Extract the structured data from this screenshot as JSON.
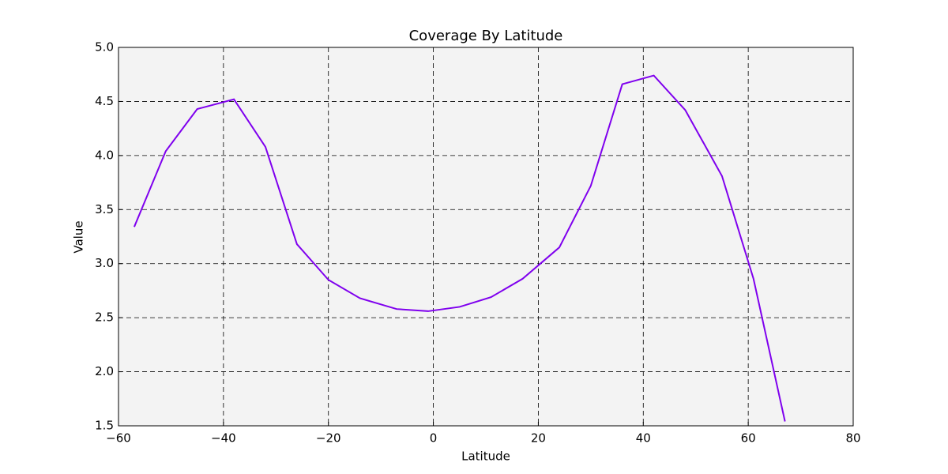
{
  "chart_data": {
    "type": "line",
    "title": "Coverage By Latitude",
    "x_label": "Latitude",
    "y_label": "Value",
    "x": [
      -57,
      -51,
      -45,
      -38,
      -32,
      -26,
      -20,
      -14,
      -7,
      -1,
      5,
      11,
      17,
      24,
      30,
      36,
      42,
      48,
      55,
      61,
      67
    ],
    "series": [
      {
        "name": "Value",
        "color": "#7f00ee",
        "values": [
          3.34,
          4.04,
          4.43,
          4.52,
          4.08,
          3.18,
          2.85,
          2.68,
          2.58,
          2.56,
          2.6,
          2.69,
          2.86,
          3.15,
          3.72,
          4.66,
          4.74,
          4.42,
          3.81,
          2.86,
          1.54
        ]
      }
    ],
    "xlim": [
      -60,
      80
    ],
    "xticks": [
      {
        "value": -60,
        "label": "−60"
      },
      {
        "value": -40,
        "label": "−40"
      },
      {
        "value": -20,
        "label": "−20"
      },
      0,
      20,
      40,
      60,
      80
    ],
    "ylim": [
      1.5,
      5.0
    ],
    "yticks": [
      1.5,
      {
        "value": 2,
        "label": "2.0"
      },
      2.5,
      {
        "value": 3,
        "label": "3.0"
      },
      3.5,
      {
        "value": 4,
        "label": "4.0"
      },
      4.5,
      {
        "value": 5,
        "label": "5.0"
      }
    ],
    "grid": true,
    "background": "#f3f3f3"
  }
}
